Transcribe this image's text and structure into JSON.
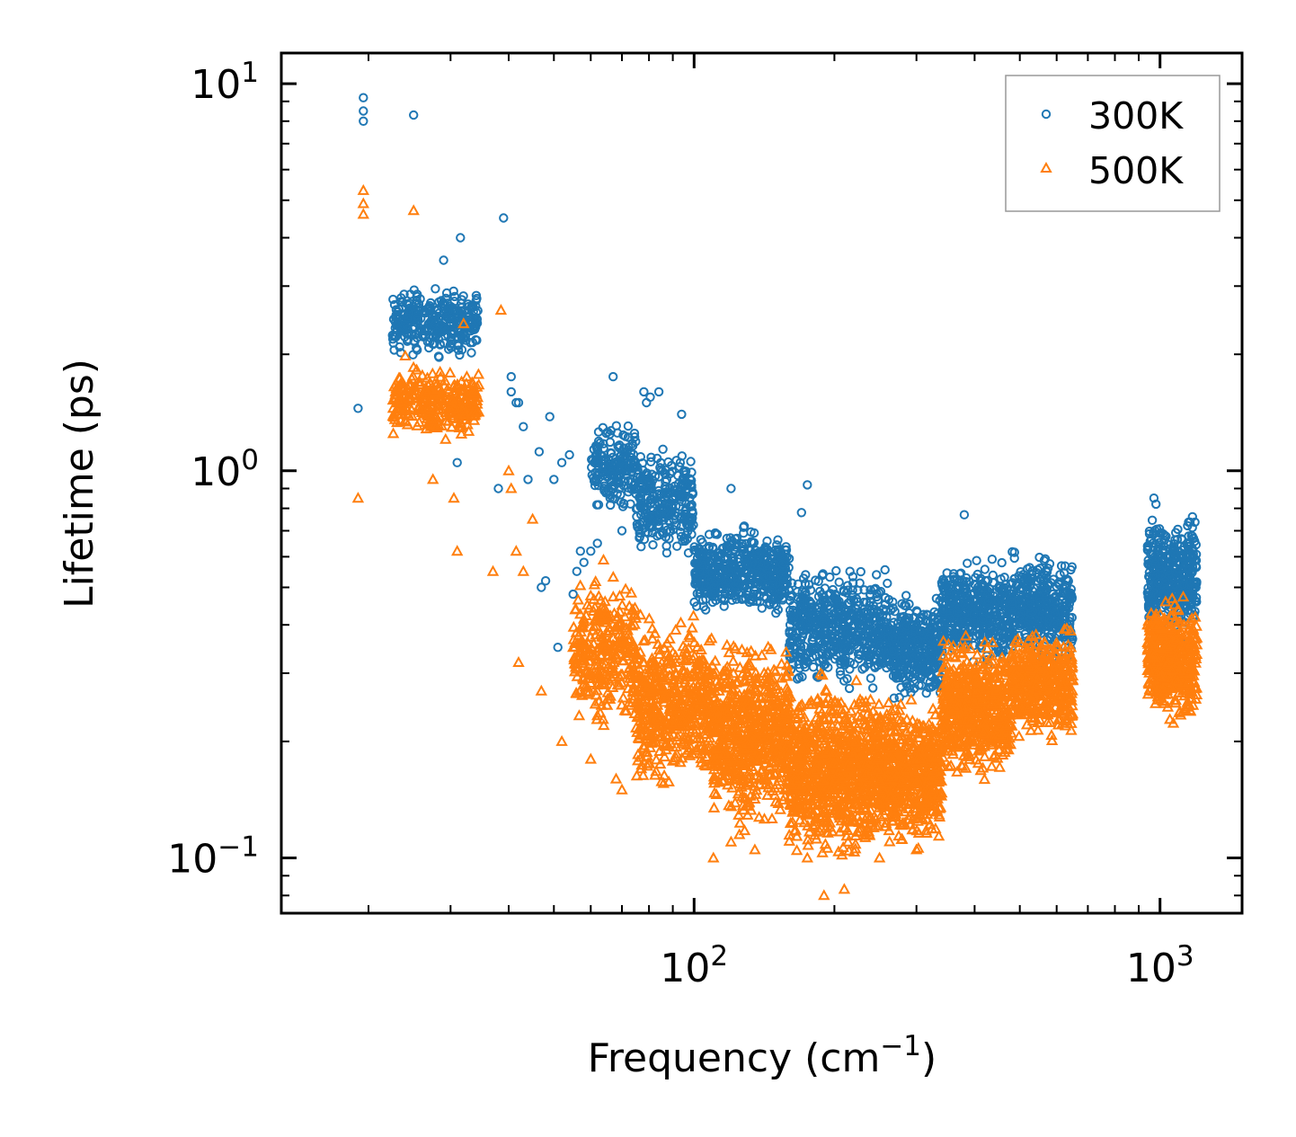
{
  "chart_data": {
    "type": "scatter",
    "title": "",
    "xlabel": "Frequency (cm",
    "xlabel_sup": "−1",
    "xlabel_close": ")",
    "ylabel": "Lifetime (ps)",
    "xscale": "log",
    "yscale": "log",
    "xlim": [
      13,
      1500
    ],
    "ylim": [
      0.072,
      12
    ],
    "x_ticks": [
      {
        "value": 100,
        "base": "10",
        "exp": "2"
      },
      {
        "value": 1000,
        "base": "10",
        "exp": "3"
      }
    ],
    "y_ticks": [
      {
        "value": 0.1,
        "base": "10",
        "exp": "−1"
      },
      {
        "value": 1,
        "base": "10",
        "exp": "0"
      },
      {
        "value": 10,
        "base": "10",
        "exp": "1"
      }
    ],
    "legend_position": "top-right",
    "series": [
      {
        "name": "300K",
        "marker": "circle",
        "color": "#1f77b4",
        "points": [
          [
            19.0,
            1.45
          ],
          [
            19.5,
            8.0
          ],
          [
            19.5,
            8.5
          ],
          [
            19.5,
            9.2
          ],
          [
            25.0,
            8.3
          ],
          [
            29.0,
            3.5
          ],
          [
            31.5,
            4.0
          ],
          [
            39.0,
            4.5
          ],
          [
            40.5,
            1.75
          ],
          [
            40.5,
            1.6
          ],
          [
            41.5,
            1.5
          ],
          [
            42.0,
            1.5
          ],
          [
            43.0,
            1.3
          ],
          [
            46.5,
            1.12
          ],
          [
            49.0,
            1.38
          ],
          [
            50.0,
            0.95
          ],
          [
            52.0,
            1.05
          ],
          [
            54.0,
            1.1
          ],
          [
            67.0,
            1.75
          ],
          [
            78.0,
            1.6
          ],
          [
            79.0,
            1.5
          ],
          [
            80.5,
            1.55
          ],
          [
            84.0,
            1.6
          ],
          [
            94.0,
            1.4
          ],
          [
            120.0,
            0.9
          ],
          [
            170.0,
            0.78
          ],
          [
            175.0,
            0.92
          ],
          [
            380.0,
            0.77
          ],
          [
            970.0,
            0.85
          ],
          [
            980.0,
            0.82
          ],
          [
            31.0,
            1.05
          ],
          [
            38.0,
            0.9
          ],
          [
            44.0,
            0.95
          ],
          [
            47.0,
            0.5
          ],
          [
            48.0,
            0.52
          ],
          [
            55.0,
            0.48
          ],
          [
            56.0,
            0.55
          ],
          [
            57.0,
            0.62
          ],
          [
            51.0,
            0.35
          ],
          [
            58.0,
            0.58
          ],
          [
            60.0,
            0.62
          ],
          [
            62.0,
            0.65
          ],
          [
            64.0,
            0.42
          ],
          [
            66.0,
            0.85
          ],
          [
            70.0,
            0.7
          ]
        ],
        "clusters": [
          {
            "x": [
              22.5,
              34.5
            ],
            "y": [
              1.9,
              3.1
            ],
            "n": 320
          },
          {
            "x": [
              60,
              75
            ],
            "y": [
              0.75,
              1.4
            ],
            "n": 180
          },
          {
            "x": [
              75,
              100
            ],
            "y": [
              0.55,
              1.2
            ],
            "n": 280
          },
          {
            "x": [
              100,
              160
            ],
            "y": [
              0.4,
              0.75
            ],
            "n": 520
          },
          {
            "x": [
              160,
              260
            ],
            "y": [
              0.26,
              0.6
            ],
            "n": 560
          },
          {
            "x": [
              260,
              340
            ],
            "y": [
              0.24,
              0.5
            ],
            "n": 380
          },
          {
            "x": [
              340,
              480
            ],
            "y": [
              0.3,
              0.62
            ],
            "n": 460
          },
          {
            "x": [
              480,
              650
            ],
            "y": [
              0.3,
              0.65
            ],
            "n": 380
          },
          {
            "x": [
              940,
              1200
            ],
            "y": [
              0.35,
              0.8
            ],
            "n": 420
          }
        ]
      },
      {
        "name": "500K",
        "marker": "triangle",
        "color": "#ff7f0e",
        "points": [
          [
            19.0,
            0.85
          ],
          [
            19.5,
            4.6
          ],
          [
            19.5,
            4.9
          ],
          [
            19.5,
            5.3
          ],
          [
            25.0,
            4.7
          ],
          [
            32.0,
            2.4
          ],
          [
            38.5,
            2.6
          ],
          [
            28.5,
            1.8
          ],
          [
            27.5,
            0.95
          ],
          [
            30.5,
            0.85
          ],
          [
            31.0,
            0.62
          ],
          [
            40.0,
            1.0
          ],
          [
            40.5,
            0.9
          ],
          [
            41.5,
            0.62
          ],
          [
            43.0,
            0.55
          ],
          [
            45.0,
            0.75
          ],
          [
            37.0,
            0.55
          ],
          [
            42.0,
            0.32
          ],
          [
            47.0,
            0.27
          ],
          [
            52.0,
            0.2
          ],
          [
            55.0,
            0.35
          ],
          [
            60.0,
            0.18
          ],
          [
            64.0,
            0.22
          ],
          [
            68.0,
            0.16
          ],
          [
            70.0,
            0.15
          ],
          [
            77.0,
            0.17
          ],
          [
            135.0,
            0.105
          ],
          [
            175.0,
            0.1
          ],
          [
            190.0,
            0.08
          ],
          [
            210.0,
            0.083
          ],
          [
            110.0,
            0.1
          ],
          [
            120.0,
            0.11
          ],
          [
            250.0,
            0.1
          ],
          [
            300.0,
            0.105
          ]
        ],
        "clusters": [
          {
            "x": [
              22.5,
              34.5
            ],
            "y": [
              1.15,
              2.0
            ],
            "n": 300
          },
          {
            "x": [
              55,
              75
            ],
            "y": [
              0.2,
              0.6
            ],
            "n": 300
          },
          {
            "x": [
              75,
              110
            ],
            "y": [
              0.14,
              0.45
            ],
            "n": 520
          },
          {
            "x": [
              110,
              160
            ],
            "y": [
              0.11,
              0.4
            ],
            "n": 640
          },
          {
            "x": [
              160,
              240
            ],
            "y": [
              0.09,
              0.32
            ],
            "n": 760
          },
          {
            "x": [
              240,
              340
            ],
            "y": [
              0.1,
              0.28
            ],
            "n": 620
          },
          {
            "x": [
              340,
              480
            ],
            "y": [
              0.15,
              0.4
            ],
            "n": 560
          },
          {
            "x": [
              480,
              650
            ],
            "y": [
              0.19,
              0.42
            ],
            "n": 420
          },
          {
            "x": [
              940,
              1200
            ],
            "y": [
              0.21,
              0.5
            ],
            "n": 460
          }
        ]
      }
    ]
  }
}
